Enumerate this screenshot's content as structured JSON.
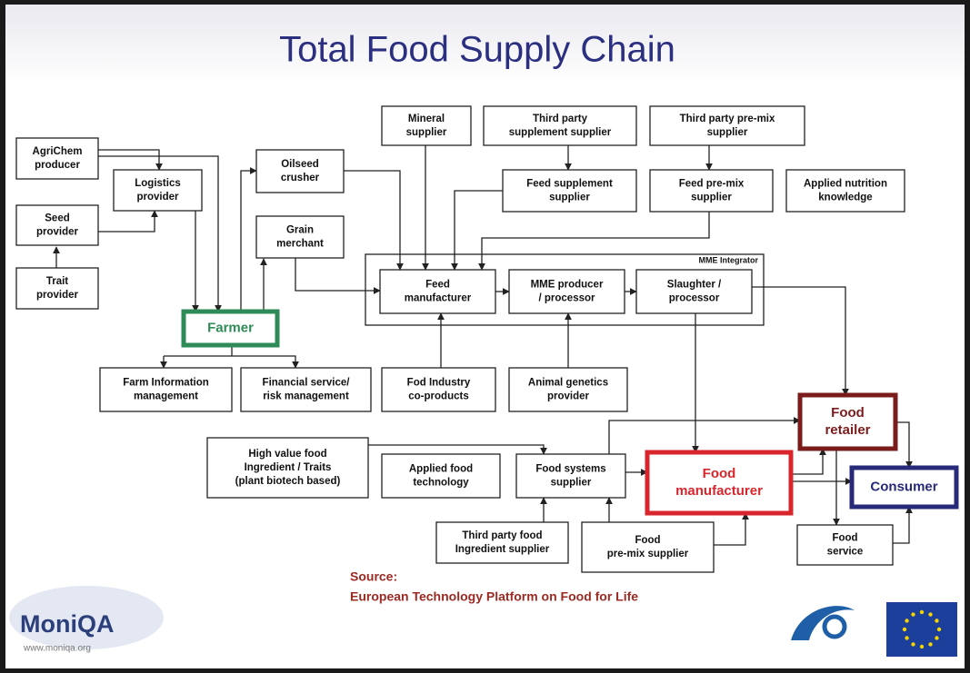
{
  "title": "Total Food Supply Chain",
  "container": {
    "label": "MME Integrator"
  },
  "nodes": [
    {
      "lines": [
        "AgriChem",
        "producer"
      ]
    },
    {
      "lines": [
        "Seed",
        "provider"
      ]
    },
    {
      "lines": [
        "Trait",
        "provider"
      ]
    },
    {
      "lines": [
        "Logistics",
        "provider"
      ]
    },
    {
      "lines": [
        "Oilseed",
        "crusher"
      ]
    },
    {
      "lines": [
        "Grain",
        "merchant"
      ]
    },
    {
      "lines": [
        "Farmer"
      ],
      "color": "#2e8b57"
    },
    {
      "lines": [
        "Mineral",
        "supplier"
      ]
    },
    {
      "lines": [
        "Third party",
        "supplement supplier"
      ]
    },
    {
      "lines": [
        "Third party pre-mix",
        "supplier"
      ]
    },
    {
      "lines": [
        "Feed supplement",
        "supplier"
      ]
    },
    {
      "lines": [
        "Feed pre-mix",
        "supplier"
      ]
    },
    {
      "lines": [
        "Applied nutrition",
        "knowledge"
      ]
    },
    {
      "lines": [
        "Feed",
        "manufacturer"
      ]
    },
    {
      "lines": [
        "MME producer",
        "/ processor"
      ]
    },
    {
      "lines": [
        "Slaughter /",
        "processor"
      ]
    },
    {
      "lines": [
        "Farm Information",
        "management"
      ]
    },
    {
      "lines": [
        "Financial service/",
        "risk management"
      ]
    },
    {
      "lines": [
        "Fod Industry",
        "co-products"
      ]
    },
    {
      "lines": [
        "Animal genetics",
        "provider"
      ]
    },
    {
      "lines": [
        "Food",
        "retailer"
      ],
      "color": "#7b1c1c"
    },
    {
      "lines": [
        "High value food",
        "Ingredient / Traits",
        "(plant biotech based)"
      ]
    },
    {
      "lines": [
        "Applied food",
        "technology"
      ]
    },
    {
      "lines": [
        "Food systems",
        "supplier"
      ]
    },
    {
      "lines": [
        "Food",
        "manufacturer"
      ],
      "color": "#d9262c"
    },
    {
      "lines": [
        "Consumer"
      ],
      "color": "#262a78"
    },
    {
      "lines": [
        "Third party food",
        "Ingredient supplier"
      ]
    },
    {
      "lines": [
        "Food",
        "pre-mix supplier"
      ]
    },
    {
      "lines": [
        "Food",
        "service"
      ]
    }
  ],
  "source": [
    "Source:",
    "European Technology Platform on Food for Life"
  ],
  "logo": {
    "name": "MoniQA",
    "url": "www.moniqa.org"
  }
}
